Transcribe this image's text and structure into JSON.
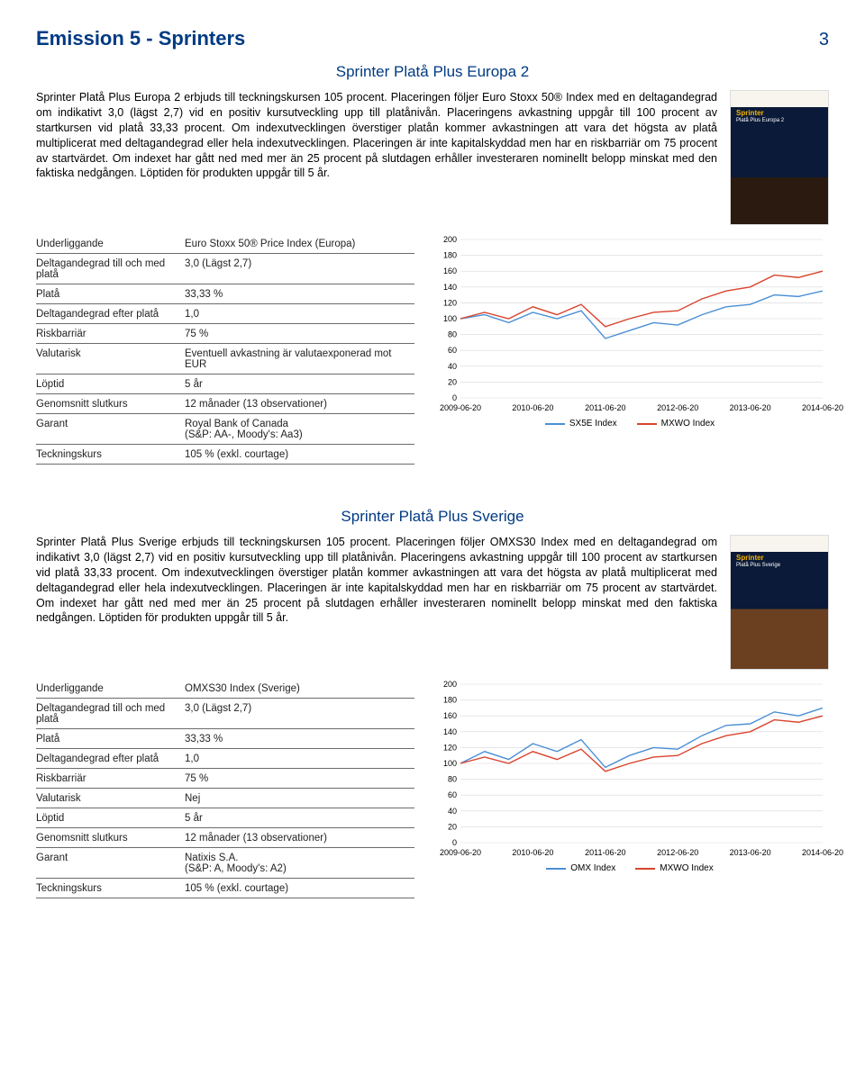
{
  "page": {
    "title": "Emission 5 - Sprinters",
    "number": "3"
  },
  "colors": {
    "brand": "#003a82",
    "series1": "#4a8fd6",
    "series2": "#d9442e",
    "grid": "#d7d7d7",
    "text": "#000000"
  },
  "chart_style": {
    "ylim": [
      0,
      200
    ],
    "ystep": 20,
    "line_width": 1.4,
    "font_size_axis": 9
  },
  "product1": {
    "title": "Sprinter Platå Plus Europa 2",
    "thumb_title": "Sprinter",
    "thumb_sub": "Platå Plus Europa 2",
    "body": "Sprinter Platå Plus Europa 2 erbjuds till teckningskursen 105 procent. Placeringen följer Euro Stoxx 50® Index med en deltagandegrad om indikativt 3,0 (lägst 2,7) vid en positiv kursutveckling upp till platånivån. Placeringens avkastning uppgår till 100 procent av startkursen vid platå 33,33 procent. Om indexutvecklingen överstiger platån kommer avkastningen att vara det högsta av platå multiplicerat med deltagandegrad eller hela indexutvecklingen. Placeringen är inte kapitalskyddad men har en riskbarriär om 75 procent av startvärdet. Om indexet har gått ned med mer än 25 procent på slutdagen erhåller investeraren nominellt belopp minskat med den faktiska nedgången. Löptiden för produkten uppgår till 5 år.",
    "kv": [
      [
        "Underliggande",
        "Euro Stoxx 50® Price Index (Europa)"
      ],
      [
        "Deltagandegrad till och med platå",
        "3,0 (Lägst 2,7)"
      ],
      [
        "Platå",
        "33,33 %"
      ],
      [
        "Deltagandegrad efter platå",
        "1,0"
      ],
      [
        "Riskbarriär",
        "75 %"
      ],
      [
        "Valutarisk",
        "Eventuell avkastning är valutaexponerad mot EUR"
      ],
      [
        "Löptid",
        "5 år"
      ],
      [
        "Genomsnitt slutkurs",
        "12 månader (13 observationer)"
      ],
      [
        "Garant",
        "Royal Bank of Canada\n(S&P: AA-, Moody's: Aa3)"
      ],
      [
        "Teckningskurs",
        "105 % (exkl. courtage)"
      ]
    ],
    "chart": {
      "x_labels": [
        "2009-06-20",
        "2010-06-20",
        "2011-06-20",
        "2012-06-20",
        "2013-06-20",
        "2014-06-20"
      ],
      "y_ticks": [
        0,
        20,
        40,
        60,
        80,
        100,
        120,
        140,
        160,
        180,
        200
      ],
      "legend": [
        {
          "label": "SX5E Index",
          "color": "#4a8fd6"
        },
        {
          "label": "MXWO Index",
          "color": "#d9442e"
        }
      ],
      "series1": [
        100,
        105,
        95,
        108,
        100,
        110,
        75,
        85,
        95,
        92,
        105,
        115,
        118,
        130,
        128,
        135
      ],
      "series2": [
        100,
        108,
        100,
        115,
        105,
        118,
        90,
        100,
        108,
        110,
        125,
        135,
        140,
        155,
        152,
        160
      ]
    }
  },
  "product2": {
    "title": "Sprinter Platå Plus Sverige",
    "thumb_title": "Sprinter",
    "thumb_sub": "Platå Plus Sverige",
    "body": "Sprinter Platå Plus Sverige erbjuds till teckningskursen 105 procent. Placeringen följer OMXS30 Index med en deltagandegrad om indikativt 3,0 (lägst 2,7) vid en positiv kursutveckling upp till platånivån. Placeringens avkastning uppgår till 100 procent av startkursen vid platå 33,33 procent. Om indexutvecklingen överstiger platån kommer avkastningen att vara det högsta av platå multiplicerat med deltagandegrad eller hela indexutvecklingen. Placeringen är inte kapitalskyddad men har en riskbarriär om 75 procent av startvärdet. Om indexet har gått ned med mer än 25 procent på slutdagen erhåller investeraren nominellt belopp minskat med den faktiska nedgången. Löptiden för produkten uppgår till 5 år.",
    "kv": [
      [
        "Underliggande",
        "OMXS30 Index (Sverige)"
      ],
      [
        "Deltagandegrad till och med platå",
        "3,0 (Lägst 2,7)"
      ],
      [
        "Platå",
        "33,33 %"
      ],
      [
        "Deltagandegrad efter platå",
        "1,0"
      ],
      [
        "Riskbarriär",
        "75 %"
      ],
      [
        "Valutarisk",
        "Nej"
      ],
      [
        "Löptid",
        "5 år"
      ],
      [
        "Genomsnitt slutkurs",
        "12 månader (13 observationer)"
      ],
      [
        "Garant",
        "Natixis S.A.\n(S&P: A, Moody's: A2)"
      ],
      [
        "Teckningskurs",
        "105 % (exkl. courtage)"
      ]
    ],
    "chart": {
      "x_labels": [
        "2009-06-20",
        "2010-06-20",
        "2011-06-20",
        "2012-06-20",
        "2013-06-20",
        "2014-06-20"
      ],
      "y_ticks": [
        0,
        20,
        40,
        60,
        80,
        100,
        120,
        140,
        160,
        180,
        200
      ],
      "legend": [
        {
          "label": "OMX Index",
          "color": "#4a8fd6"
        },
        {
          "label": "MXWO Index",
          "color": "#d9442e"
        }
      ],
      "series1": [
        100,
        115,
        105,
        125,
        115,
        130,
        95,
        110,
        120,
        118,
        135,
        148,
        150,
        165,
        160,
        170
      ],
      "series2": [
        100,
        108,
        100,
        115,
        105,
        118,
        90,
        100,
        108,
        110,
        125,
        135,
        140,
        155,
        152,
        160
      ]
    }
  }
}
